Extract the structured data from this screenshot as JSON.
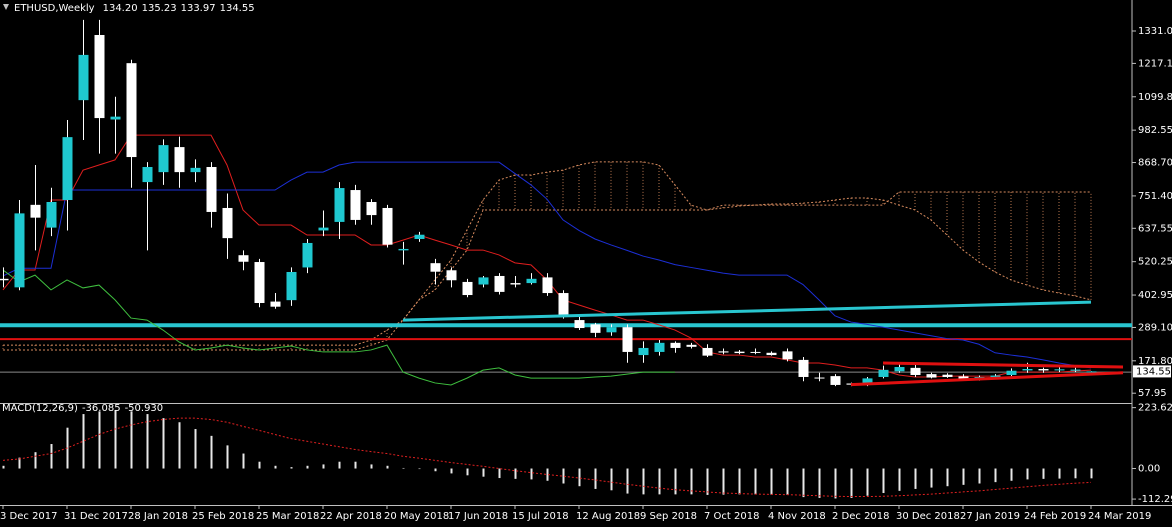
{
  "chart_data": [
    {
      "type": "candlestick",
      "title": "ETHUSD,Weekly",
      "last_labels": [
        "134.20",
        "135.23",
        "133.97",
        "134.55"
      ],
      "categories": [
        "3 Dec 2017",
        null,
        null,
        null,
        "31 Dec 2017",
        null,
        null,
        null,
        "28 Jan 2018",
        null,
        null,
        null,
        "25 Feb 2018",
        null,
        null,
        null,
        "25 Mar 2018",
        null,
        null,
        null,
        "22 Apr 2018",
        null,
        null,
        null,
        "20 May 2018",
        null,
        null,
        null,
        "17 Jun 2018",
        null,
        null,
        null,
        "15 Jul 2018",
        null,
        null,
        null,
        "12 Aug 2018",
        null,
        null,
        null,
        "9 Sep 2018",
        null,
        null,
        null,
        "7 Oct 2018",
        null,
        null,
        null,
        "4 Nov 2018",
        null,
        null,
        null,
        "2 Dec 2018",
        null,
        null,
        null,
        "30 Dec 2018",
        null,
        null,
        null,
        "27 Jan 2019",
        null,
        null,
        null,
        "24 Feb 2019",
        null,
        null,
        null,
        "24 Mar 2019"
      ],
      "open": [
        460,
        430,
        720,
        640,
        737,
        1088,
        1317,
        1020,
        1218,
        800,
        835,
        923,
        835,
        853,
        709,
        543,
        519,
        380,
        385,
        500,
        630,
        660,
        772,
        730,
        709,
        560,
        600,
        515,
        490,
        449,
        440,
        470,
        445,
        445,
        465,
        410,
        315,
        300,
        272,
        290,
        192,
        203,
        235,
        228,
        217,
        205,
        204,
        203,
        200,
        205,
        175,
        113,
        118,
        92,
        87,
        115,
        135,
        147,
        125,
        123,
        117,
        107,
        115,
        122,
        138,
        143,
        138,
        137,
        134.2
      ],
      "high": [
        500,
        737,
        860,
        780,
        1018,
        1370,
        1370,
        1100,
        1230,
        870,
        950,
        960,
        880,
        870,
        760,
        560,
        530,
        410,
        500,
        600,
        700,
        800,
        790,
        740,
        720,
        590,
        625,
        530,
        500,
        460,
        470,
        480,
        470,
        480,
        480,
        420,
        330,
        305,
        300,
        300,
        240,
        245,
        240,
        235,
        230,
        215,
        210,
        215,
        205,
        215,
        185,
        130,
        125,
        95,
        115,
        155,
        160,
        160,
        130,
        128,
        125,
        120,
        125,
        145,
        165,
        148,
        150,
        148,
        135.23
      ],
      "low": [
        430,
        420,
        560,
        610,
        630,
        948,
        900,
        900,
        780,
        560,
        790,
        780,
        800,
        640,
        530,
        490,
        360,
        355,
        365,
        480,
        610,
        600,
        650,
        650,
        570,
        510,
        590,
        440,
        430,
        395,
        430,
        405,
        430,
        440,
        400,
        320,
        280,
        255,
        260,
        165,
        165,
        190,
        200,
        215,
        185,
        195,
        195,
        195,
        190,
        170,
        100,
        100,
        83,
        83,
        83,
        110,
        130,
        115,
        110,
        112,
        103,
        102,
        112,
        118,
        130,
        130,
        132,
        132,
        133.97
      ],
      "close": [
        455,
        690,
        675,
        730,
        958,
        1247,
        1025,
        1030,
        888,
        853,
        930,
        835,
        850,
        695,
        603,
        520,
        375,
        362,
        484,
        586,
        640,
        779,
        667,
        684,
        580,
        565,
        615,
        485,
        455,
        403,
        465,
        414,
        440,
        460,
        410,
        333,
        287,
        270,
        290,
        203,
        217,
        235,
        217,
        221,
        190,
        201,
        199,
        200,
        192,
        177,
        115,
        110,
        87,
        88,
        110,
        140,
        150,
        122,
        113,
        115,
        109,
        115,
        120,
        137,
        143,
        138,
        142,
        141,
        134.55
      ],
      "up_color": "#1fc8d0",
      "down_color": "#ffffff",
      "wick_color": "#ffffff",
      "lines": [
        {
          "color": "#e01e1e",
          "values": [
            421,
            491,
            491,
            737,
            737,
            842,
            860,
            878,
            965,
            965,
            965,
            965,
            965,
            965,
            860,
            702,
            649,
            649,
            649,
            614,
            614,
            614,
            614,
            579,
            579,
            596,
            614,
            596,
            579,
            561,
            561,
            544,
            516,
            509,
            456,
            386,
            368,
            350,
            333,
            315,
            315,
            298,
            280,
            252,
            203,
            192,
            192,
            185,
            185,
            175,
            164,
            164,
            157,
            147,
            147,
            139,
            122,
            115,
            115,
            118,
            118,
            118,
            118,
            132,
            132,
            132,
            132,
            136,
            139
          ]
        },
        {
          "color": "#1c2fd6",
          "values": [
            470,
            497,
            497,
            497,
            772,
            772,
            772,
            772,
            772,
            772,
            772,
            772,
            772,
            772,
            772,
            772,
            772,
            772,
            807,
            835,
            835,
            860,
            870,
            870,
            870,
            870,
            870,
            870,
            870,
            870,
            870,
            870,
            830,
            790,
            740,
            667,
            630,
            600,
            579,
            560,
            540,
            526,
            510,
            500,
            490,
            480,
            473,
            473,
            473,
            473,
            440,
            386,
            330,
            308,
            300,
            290,
            280,
            270,
            260,
            250,
            245,
            230,
            200,
            192,
            185,
            175,
            164,
            155,
            147
          ]
        },
        {
          "color": "#3fbf3f",
          "values": [
            491,
            449,
            473,
            421,
            456,
            428,
            438,
            386,
            322,
            315,
            280,
            238,
            210,
            217,
            227,
            217,
            210,
            217,
            224,
            210,
            203,
            203,
            203,
            210,
            227,
            132,
            111,
            94,
            87,
            111,
            139,
            147,
            122,
            111,
            111,
            111,
            111,
            115,
            118,
            125,
            132,
            132,
            132,
            null,
            null,
            null,
            null,
            null,
            null,
            null,
            null,
            null,
            null,
            null,
            null,
            null,
            null,
            null,
            null,
            null,
            null,
            null,
            null,
            null,
            null,
            null,
            null,
            null,
            null
          ]
        }
      ],
      "cloud": {
        "color": "#d98c5f",
        "span_a": [
          227,
          227,
          227,
          227,
          227,
          227,
          227,
          227,
          227,
          227,
          227,
          227,
          227,
          227,
          227,
          227,
          227,
          227,
          227,
          227,
          227,
          227,
          227,
          245,
          280,
          315,
          386,
          456,
          526,
          632,
          737,
          807,
          825,
          825,
          835,
          842,
          860,
          871,
          871,
          871,
          871,
          860,
          790,
          719,
          702,
          709,
          716,
          719,
          723,
          723,
          726,
          730,
          737,
          744,
          744,
          737,
          719,
          702,
          667,
          614,
          561,
          519,
          484,
          456,
          438,
          421,
          410,
          400,
          386
        ],
        "span_b": [
          210,
          210,
          210,
          210,
          210,
          210,
          210,
          210,
          210,
          210,
          210,
          210,
          210,
          210,
          210,
          210,
          210,
          210,
          210,
          210,
          210,
          210,
          210,
          227,
          245,
          315,
          386,
          421,
          491,
          561,
          702,
          702,
          702,
          702,
          702,
          702,
          702,
          702,
          702,
          702,
          702,
          702,
          702,
          702,
          702,
          719,
          719,
          719,
          719,
          719,
          719,
          719,
          719,
          719,
          719,
          719,
          765,
          765,
          765,
          765,
          765,
          765,
          765,
          765,
          765,
          765,
          765,
          765,
          765
        ]
      },
      "hlines": [
        {
          "value": 297,
          "color": "#29c5cf"
        },
        {
          "value": 248,
          "color": "#e01010"
        },
        {
          "value": 132,
          "color": "#8a8a8a"
        }
      ],
      "trendlines": [
        {
          "color": "#29c5cf",
          "x": [
            25,
            68
          ],
          "y": [
            315,
            378
          ]
        },
        {
          "color": "#e01010",
          "x": [
            55,
            70
          ],
          "y": [
            164,
            150
          ]
        },
        {
          "color": "#e01010",
          "x": [
            53,
            70
          ],
          "y": [
            88,
            130
          ]
        }
      ],
      "ylim": [
        20,
        1440
      ],
      "yticks": [
        {
          "value": 1331,
          "label": "1331.00"
        },
        1217.15,
        1099.85,
        982.55,
        {
          "value": 868.7,
          "label": "868.70"
        },
        {
          "value": 751.4,
          "label": "751.40"
        },
        637.55,
        520.25,
        402.95,
        {
          "value": 289.1,
          "label": "289.10"
        },
        {
          "value": 171.8,
          "label": "171.80"
        },
        57.95
      ]
    },
    {
      "type": "macd",
      "title": "MACD(12,26,9)",
      "last_labels": [
        "-36.085",
        "-50.930"
      ],
      "histogram": {
        "color": "#e8e8e8",
        "values": [
          10,
          40,
          60,
          90,
          150,
          200,
          210,
          215,
          210,
          200,
          185,
          170,
          145,
          120,
          85,
          55,
          25,
          10,
          5,
          10,
          15,
          25,
          25,
          15,
          10,
          2,
          -2,
          -10,
          -18,
          -25,
          -30,
          -35,
          -38,
          -40,
          -45,
          -55,
          -65,
          -75,
          -80,
          -92,
          -95,
          -95,
          -95,
          -95,
          -97,
          -96,
          -95,
          -95,
          -96,
          -97,
          -105,
          -108,
          -110,
          -108,
          -100,
          -90,
          -82,
          -75,
          -70,
          -65,
          -60,
          -55,
          -50,
          -45,
          -40,
          -38,
          -37,
          -36,
          -36.085
        ]
      },
      "signal": {
        "color": "#e02020",
        "values": [
          30,
          35,
          45,
          55,
          75,
          100,
          125,
          145,
          160,
          172,
          180,
          185,
          185,
          180,
          170,
          155,
          140,
          125,
          110,
          100,
          90,
          80,
          70,
          62,
          55,
          45,
          38,
          30,
          22,
          15,
          8,
          0,
          -8,
          -15,
          -22,
          -28,
          -35,
          -42,
          -50,
          -58,
          -65,
          -72,
          -78,
          -82,
          -86,
          -90,
          -92,
          -94,
          -95,
          -96,
          -98,
          -100,
          -102,
          -103,
          -103,
          -102,
          -100,
          -97,
          -94,
          -90,
          -86,
          -82,
          -77,
          -72,
          -67,
          -62,
          -58,
          -54,
          -50.93
        ]
      },
      "ylim": [
        -123,
        237
      ],
      "yticks": [
        223.623,
        {
          "value": 0,
          "label": "0.00"
        },
        -112.299
      ]
    }
  ]
}
